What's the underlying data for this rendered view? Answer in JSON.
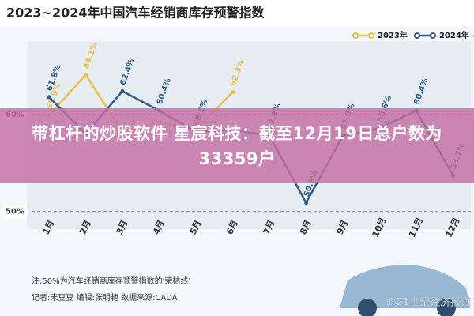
{
  "chart_data": {
    "type": "line",
    "title": "2023~2024年中国汽车经销商库存预警指数",
    "categories": [
      "1月",
      "2月",
      "3月",
      "4月",
      "5月",
      "6月",
      "7月",
      "8月",
      "9月",
      "10月",
      "11月",
      "12月"
    ],
    "series": [
      {
        "name": "2023年",
        "color": "#e8c04a",
        "values": [
          59.9,
          64.1,
          58.2,
          59.2,
          58.4,
          62.3,
          null,
          null,
          null,
          null,
          null,
          null
        ],
        "value_labels": [
          "59.9%",
          "64.1%",
          null,
          null,
          null,
          "62.3%",
          null,
          null,
          null,
          null,
          null,
          null
        ]
      },
      {
        "name": "2024年",
        "color": "#2f5d8c",
        "values": [
          61.8,
          58.0,
          62.4,
          60.4,
          58.2,
          58.4,
          57.8,
          50.9,
          57.8,
          58.6,
          60.4,
          53.7
        ],
        "value_labels": [
          "61.8%",
          null,
          "62.4%",
          "60.4%",
          "58.2%",
          null,
          "57.8%",
          "50.9%",
          "57.8%",
          "58.6%",
          "60.4%",
          "53.7%"
        ]
      }
    ],
    "ylim": [
      48.5,
      67
    ],
    "yticks": [
      {
        "value": 60,
        "label": "60%"
      },
      {
        "value": 50,
        "label": "50%"
      }
    ],
    "grid": true,
    "legend": "top-right",
    "notes": [
      "注:50%为汽车经销商库存预警指数的'荣枯线'",
      "记者:宋豆豆 编辑:张明艳 数据来源:CADA"
    ],
    "watermark": "@21世纪经济报道"
  },
  "banner": "带杠杆的炒股软件 星宸科技：截至12月19日总户数为33359户"
}
